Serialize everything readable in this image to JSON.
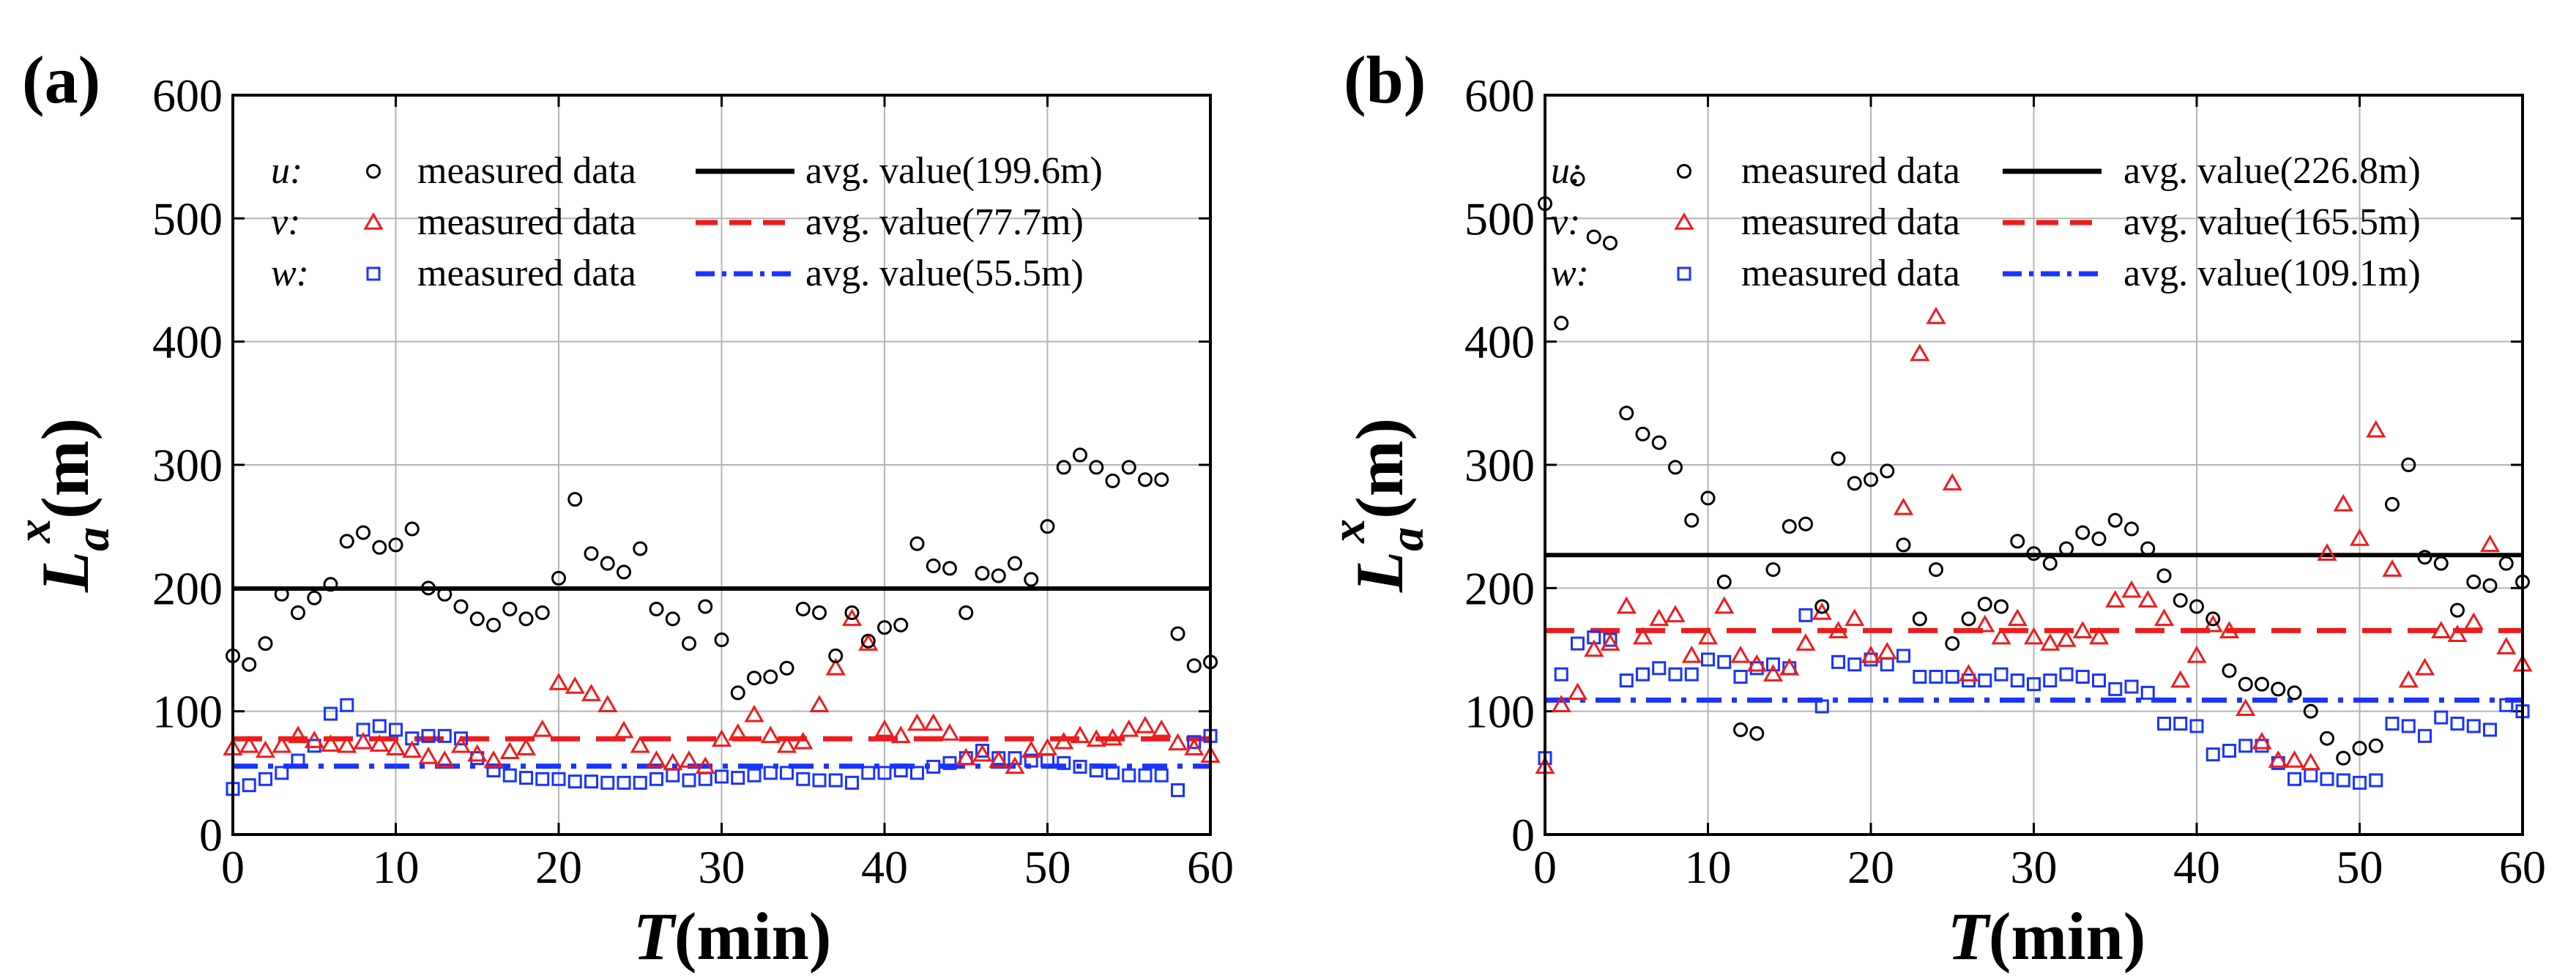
{
  "colors": {
    "u": "#000000",
    "v": "#ee1c1c",
    "w": "#1a34ff",
    "grid": "#b4b4b4"
  },
  "chart_data": [
    {
      "panel": "(a)",
      "type": "scatter",
      "xlabel": {
        "italic": "T",
        "rest": "(min)"
      },
      "ylabel": {
        "main": "L",
        "sub": "a",
        "sup": "x",
        "rest": "(m)"
      },
      "xlim": [
        0,
        60
      ],
      "ylim": [
        0,
        600
      ],
      "xticks": [
        0,
        10,
        20,
        30,
        40,
        50,
        60
      ],
      "yticks": [
        0,
        100,
        200,
        300,
        400,
        500,
        600
      ],
      "legend": [
        {
          "comp": "u",
          "comp_text": "u:",
          "marker_label": "measured data",
          "line_label": "avg. value(199.6m)"
        },
        {
          "comp": "v",
          "comp_text": "v:",
          "marker_label": "measured data",
          "line_label": "avg. value(77.7m)"
        },
        {
          "comp": "w",
          "comp_text": "w:",
          "marker_label": "measured data",
          "line_label": "avg. value(55.5m)"
        }
      ],
      "series": [
        {
          "name": "u",
          "marker": "circle",
          "avg": 199.6,
          "x": [
            0,
            1,
            2,
            3,
            4,
            5,
            6,
            7,
            8,
            9,
            10,
            11,
            12,
            13,
            14,
            15,
            16,
            17,
            18,
            19,
            20,
            21,
            22,
            23,
            24,
            25,
            26,
            27,
            28,
            29,
            30,
            31,
            32,
            33,
            34,
            35,
            36,
            37,
            38,
            39,
            40,
            41,
            42,
            43,
            44,
            45,
            46,
            47,
            48,
            49,
            50,
            51,
            52,
            53,
            54,
            55,
            56,
            57,
            58,
            59,
            60
          ],
          "y": [
            145,
            138,
            155,
            195,
            180,
            192,
            203,
            238,
            245,
            233,
            235,
            248,
            200,
            195,
            185,
            175,
            170,
            183,
            175,
            180,
            208,
            272,
            228,
            220,
            213,
            232,
            183,
            175,
            155,
            185,
            158,
            115,
            127,
            128,
            135,
            183,
            180,
            145,
            180,
            157,
            168,
            170,
            236,
            218,
            216,
            180,
            212,
            210,
            220,
            207,
            250,
            298,
            308,
            298,
            287,
            298,
            288,
            288,
            163,
            137,
            140
          ]
        },
        {
          "name": "v",
          "marker": "triangle",
          "avg": 77.7,
          "x": [
            0,
            1,
            2,
            3,
            4,
            5,
            6,
            7,
            8,
            9,
            10,
            11,
            12,
            13,
            14,
            15,
            16,
            17,
            18,
            19,
            20,
            21,
            22,
            23,
            24,
            25,
            26,
            27,
            28,
            29,
            30,
            31,
            32,
            33,
            34,
            35,
            36,
            37,
            38,
            39,
            40,
            41,
            42,
            43,
            44,
            45,
            46,
            47,
            48,
            49,
            50,
            51,
            52,
            53,
            54,
            55,
            56,
            57,
            58,
            59,
            60
          ],
          "y": [
            70,
            72,
            68,
            72,
            80,
            76,
            73,
            72,
            75,
            73,
            70,
            68,
            63,
            60,
            72,
            65,
            60,
            67,
            70,
            85,
            123,
            120,
            114,
            105,
            84,
            72,
            60,
            58,
            60,
            55,
            77,
            82,
            97,
            80,
            72,
            75,
            105,
            135,
            175,
            155,
            85,
            80,
            90,
            90,
            82,
            62,
            65,
            60,
            55,
            68,
            70,
            75,
            80,
            77,
            78,
            85,
            88,
            85,
            74,
            70,
            64
          ]
        },
        {
          "name": "w",
          "marker": "square",
          "avg": 55.5,
          "x": [
            0,
            1,
            2,
            3,
            4,
            5,
            6,
            7,
            8,
            9,
            10,
            11,
            12,
            13,
            14,
            15,
            16,
            17,
            18,
            19,
            20,
            21,
            22,
            23,
            24,
            25,
            26,
            27,
            28,
            29,
            30,
            31,
            32,
            33,
            34,
            35,
            36,
            37,
            38,
            39,
            40,
            41,
            42,
            43,
            44,
            45,
            46,
            47,
            48,
            49,
            50,
            51,
            52,
            53,
            54,
            55,
            56,
            57,
            58,
            59,
            60
          ],
          "y": [
            37,
            40,
            45,
            50,
            60,
            72,
            98,
            105,
            85,
            88,
            85,
            78,
            80,
            80,
            78,
            62,
            52,
            48,
            46,
            45,
            45,
            43,
            43,
            42,
            42,
            42,
            45,
            48,
            44,
            45,
            47,
            46,
            48,
            50,
            50,
            45,
            44,
            44,
            42,
            50,
            50,
            52,
            50,
            55,
            58,
            62,
            68,
            62,
            62,
            60,
            60,
            58,
            55,
            52,
            50,
            48,
            48,
            48,
            36,
            75,
            80
          ]
        }
      ]
    },
    {
      "panel": "(b)",
      "type": "scatter",
      "xlabel": {
        "italic": "T",
        "rest": "(min)"
      },
      "ylabel": {
        "main": "L",
        "sub": "a",
        "sup": "x",
        "rest": "(m)"
      },
      "xlim": [
        0,
        60
      ],
      "ylim": [
        0,
        600
      ],
      "xticks": [
        0,
        10,
        20,
        30,
        40,
        50,
        60
      ],
      "yticks": [
        0,
        100,
        200,
        300,
        400,
        500,
        600
      ],
      "legend": [
        {
          "comp": "u",
          "comp_text": "u:",
          "marker_label": "measured data",
          "line_label": "avg. value(226.8m)"
        },
        {
          "comp": "v",
          "comp_text": "v:",
          "marker_label": "measured data",
          "line_label": "avg. value(165.5m)"
        },
        {
          "comp": "w",
          "comp_text": "w:",
          "marker_label": "measured data",
          "line_label": "avg. value(109.1m)"
        }
      ],
      "series": [
        {
          "name": "u",
          "marker": "circle",
          "avg": 226.8,
          "x": [
            0,
            1,
            2,
            3,
            4,
            5,
            6,
            7,
            8,
            9,
            10,
            11,
            12,
            13,
            14,
            15,
            16,
            17,
            18,
            19,
            20,
            21,
            22,
            23,
            24,
            25,
            26,
            27,
            28,
            29,
            30,
            31,
            32,
            33,
            34,
            35,
            36,
            37,
            38,
            39,
            40,
            41,
            42,
            43,
            44,
            45,
            46,
            47,
            48,
            49,
            50,
            51,
            52,
            53,
            54,
            55,
            56,
            57,
            58,
            59,
            60
          ],
          "y": [
            512,
            415,
            532,
            485,
            480,
            342,
            325,
            318,
            298,
            255,
            273,
            205,
            85,
            82,
            215,
            250,
            252,
            185,
            305,
            285,
            288,
            295,
            235,
            175,
            215,
            155,
            175,
            187,
            185,
            238,
            228,
            220,
            232,
            245,
            240,
            255,
            248,
            232,
            210,
            190,
            185,
            175,
            133,
            122,
            122,
            118,
            115,
            100,
            78,
            62,
            70,
            72,
            268,
            300,
            225,
            220,
            182,
            205,
            202,
            220,
            205
          ]
        },
        {
          "name": "v",
          "marker": "triangle",
          "avg": 165.5,
          "x": [
            0,
            1,
            2,
            3,
            4,
            5,
            6,
            7,
            8,
            9,
            10,
            11,
            12,
            13,
            14,
            15,
            16,
            17,
            18,
            19,
            20,
            21,
            22,
            23,
            24,
            25,
            26,
            27,
            28,
            29,
            30,
            31,
            32,
            33,
            34,
            35,
            36,
            37,
            38,
            39,
            40,
            41,
            42,
            43,
            44,
            45,
            46,
            47,
            48,
            49,
            50,
            51,
            52,
            53,
            54,
            55,
            56,
            57,
            58,
            59,
            60
          ],
          "y": [
            55,
            105,
            115,
            150,
            155,
            185,
            160,
            175,
            178,
            145,
            160,
            185,
            145,
            138,
            130,
            135,
            155,
            180,
            165,
            175,
            145,
            148,
            265,
            390,
            420,
            285,
            130,
            170,
            160,
            175,
            160,
            155,
            158,
            165,
            160,
            190,
            198,
            190,
            175,
            125,
            145,
            170,
            165,
            102,
            75,
            60,
            60,
            58,
            228,
            268,
            240,
            328,
            215,
            125,
            135,
            165,
            162,
            172,
            235,
            152,
            138
          ]
        },
        {
          "name": "w",
          "marker": "square",
          "avg": 109.1,
          "x": [
            0,
            1,
            2,
            3,
            4,
            5,
            6,
            7,
            8,
            9,
            10,
            11,
            12,
            13,
            14,
            15,
            16,
            17,
            18,
            19,
            20,
            21,
            22,
            23,
            24,
            25,
            26,
            27,
            28,
            29,
            30,
            31,
            32,
            33,
            34,
            35,
            36,
            37,
            38,
            39,
            40,
            41,
            42,
            43,
            44,
            45,
            46,
            47,
            48,
            49,
            50,
            51,
            52,
            53,
            54,
            55,
            56,
            57,
            58,
            59,
            60
          ],
          "y": [
            62,
            130,
            155,
            160,
            158,
            125,
            130,
            135,
            130,
            130,
            142,
            140,
            128,
            135,
            138,
            135,
            178,
            104,
            140,
            138,
            142,
            138,
            145,
            128,
            128,
            128,
            125,
            125,
            130,
            125,
            122,
            125,
            130,
            128,
            125,
            118,
            120,
            115,
            90,
            90,
            88,
            65,
            68,
            72,
            72,
            58,
            45,
            48,
            45,
            44,
            42,
            44,
            90,
            88,
            80,
            95,
            90,
            88,
            85,
            105,
            100
          ]
        }
      ]
    }
  ]
}
